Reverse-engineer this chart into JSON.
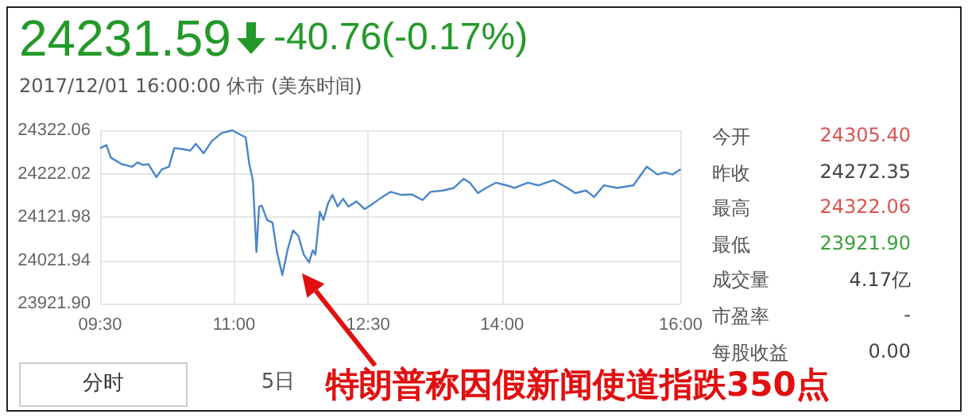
{
  "chart_data": [
    {
      "type": "line",
      "title": "24231.59",
      "subtitle": "2017/12/01 16:00:00  休市 (美东时间)",
      "annotations": [
        "-40.76(-0.17%)",
        "分时",
        "5日",
        "特朗普称因假新闻使道指跌350点"
      ],
      "x": [
        9.5,
        9.57,
        9.62,
        9.74,
        9.86,
        9.92,
        9.98,
        10.04,
        10.13,
        10.19,
        10.27,
        10.33,
        10.42,
        10.51,
        10.57,
        10.66,
        10.75,
        10.86,
        10.98,
        11.07,
        11.13,
        11.17,
        11.21,
        11.25,
        11.28,
        11.31,
        11.37,
        11.43,
        11.48,
        11.54,
        11.6,
        11.66,
        11.72,
        11.78,
        11.84,
        11.88,
        11.91,
        11.96,
        12.0,
        12.05,
        12.1,
        12.16,
        12.22,
        12.28,
        12.37,
        12.46,
        12.55,
        12.63,
        12.75,
        12.87,
        12.99,
        13.11,
        13.2,
        13.34,
        13.46,
        13.57,
        13.64,
        13.73,
        13.82,
        13.93,
        14.05,
        14.14,
        14.29,
        14.41,
        14.58,
        14.73,
        14.82,
        14.94,
        15.03,
        15.14,
        15.29,
        15.47,
        15.62,
        15.74,
        15.82,
        15.91,
        16.0
      ],
      "series": [
        {
          "color": "#4a86c8",
          "values": [
            24281,
            24288,
            24259,
            24244,
            24238,
            24248,
            24242,
            24244,
            24214,
            24232,
            24238,
            24281,
            24279,
            24275,
            24291,
            24269,
            24297,
            24316,
            24322,
            24312,
            24306,
            24244,
            24207,
            24041,
            24146,
            24148,
            24115,
            24109,
            24041,
            23988,
            24047,
            24091,
            24078,
            24035,
            24017,
            24045,
            24035,
            24134,
            24115,
            24152,
            24173,
            24146,
            24164,
            24146,
            24158,
            24140,
            24152,
            24164,
            24180,
            24173,
            24174,
            24161,
            24180,
            24183,
            24189,
            24210,
            24201,
            24177,
            24189,
            24201,
            24195,
            24189,
            24201,
            24195,
            24207,
            24189,
            24177,
            24183,
            24168,
            24195,
            24189,
            24195,
            24238,
            24220,
            24225,
            24220,
            24232
          ]
        }
      ],
      "xlim": [
        9.5,
        16
      ],
      "xticks": [
        {
          "value": 9.5,
          "label": "09:30"
        },
        {
          "value": 11,
          "label": "11:00"
        },
        {
          "value": 12.5,
          "label": "12:30"
        },
        {
          "value": 14,
          "label": "14:00"
        },
        {
          "value": 16,
          "label": "16:00"
        }
      ],
      "ylim": [
        23921.9,
        24322.06
      ],
      "yticks": [
        {
          "value": 23921.9,
          "label": "23921.90"
        },
        {
          "value": 24021.94,
          "label": "24021.94"
        },
        {
          "value": 24121.98,
          "label": "24121.98"
        },
        {
          "value": 24222.02,
          "label": "24222.02"
        },
        {
          "value": 24322.06,
          "label": "24322.06"
        }
      ],
      "grid": true,
      "marker": "none",
      "line_style": "solid"
    },
    {
      "type": "other",
      "annotations": [
        "今开",
        "24305.40",
        "昨收",
        "24272.35",
        "最高",
        "24322.06",
        "最低",
        "23921.90",
        "成交量",
        "4.17亿",
        "市盈率",
        "-",
        "每股收益",
        "0.00"
      ]
    }
  ]
}
